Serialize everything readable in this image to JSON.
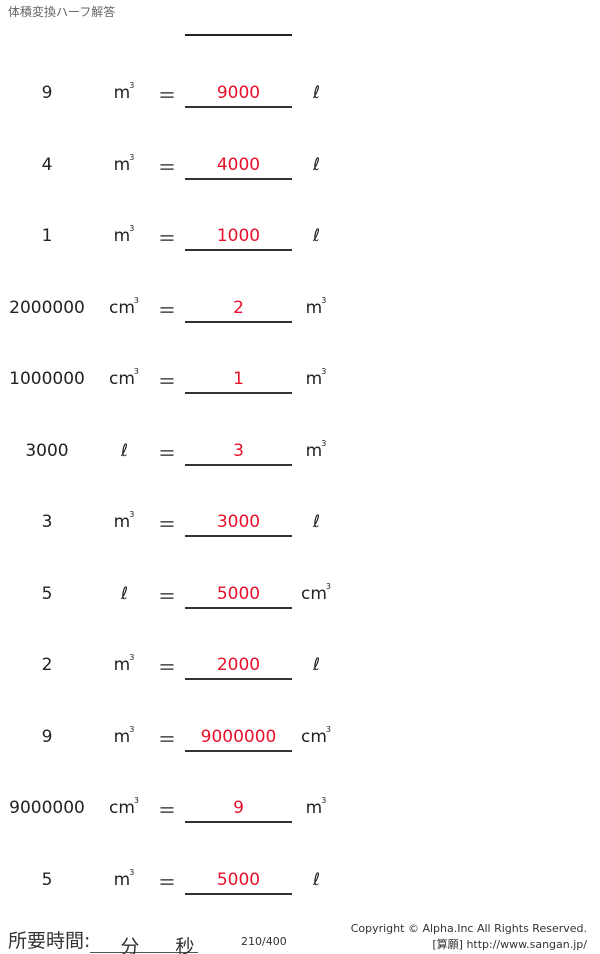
{
  "header": {
    "title": "体積変換ハーフ解答"
  },
  "problems": [
    {
      "value": "9",
      "from_unit": "m",
      "from_sup": "3",
      "equals": "＝",
      "answer": "9000",
      "to_unit": "ℓ",
      "to_sup": ""
    },
    {
      "value": "4",
      "from_unit": "m",
      "from_sup": "3",
      "equals": "＝",
      "answer": "4000",
      "to_unit": "ℓ",
      "to_sup": ""
    },
    {
      "value": "1",
      "from_unit": "m",
      "from_sup": "3",
      "equals": "＝",
      "answer": "1000",
      "to_unit": "ℓ",
      "to_sup": ""
    },
    {
      "value": "2000000",
      "from_unit": "cm",
      "from_sup": "3",
      "equals": "＝",
      "answer": "2",
      "to_unit": "m",
      "to_sup": "3"
    },
    {
      "value": "1000000",
      "from_unit": "cm",
      "from_sup": "3",
      "equals": "＝",
      "answer": "1",
      "to_unit": "m",
      "to_sup": "3"
    },
    {
      "value": "3000",
      "from_unit": "ℓ",
      "from_sup": "",
      "equals": "＝",
      "answer": "3",
      "to_unit": "m",
      "to_sup": "3"
    },
    {
      "value": "3",
      "from_unit": "m",
      "from_sup": "3",
      "equals": "＝",
      "answer": "3000",
      "to_unit": "ℓ",
      "to_sup": ""
    },
    {
      "value": "5",
      "from_unit": "ℓ",
      "from_sup": "",
      "equals": "＝",
      "answer": "5000",
      "to_unit": "cm",
      "to_sup": "3"
    },
    {
      "value": "2",
      "from_unit": "m",
      "from_sup": "3",
      "equals": "＝",
      "answer": "2000",
      "to_unit": "ℓ",
      "to_sup": ""
    },
    {
      "value": "9",
      "from_unit": "m",
      "from_sup": "3",
      "equals": "＝",
      "answer": "9000000",
      "to_unit": "cm",
      "to_sup": "3"
    },
    {
      "value": "9000000",
      "from_unit": "cm",
      "from_sup": "3",
      "equals": "＝",
      "answer": "9",
      "to_unit": "m",
      "to_sup": "3"
    },
    {
      "value": "5",
      "from_unit": "m",
      "from_sup": "3",
      "equals": "＝",
      "answer": "5000",
      "to_unit": "ℓ",
      "to_sup": ""
    }
  ],
  "footer": {
    "time_label": "所要時間:",
    "minutes_label": "分",
    "seconds_label": "秒",
    "page_number": "210/400",
    "copyright": "Copyright © Alpha.Inc All Rights Reserved.",
    "site": "[算願] http://www.sangan.jp/"
  },
  "colors": {
    "answer": "#e8102a"
  }
}
